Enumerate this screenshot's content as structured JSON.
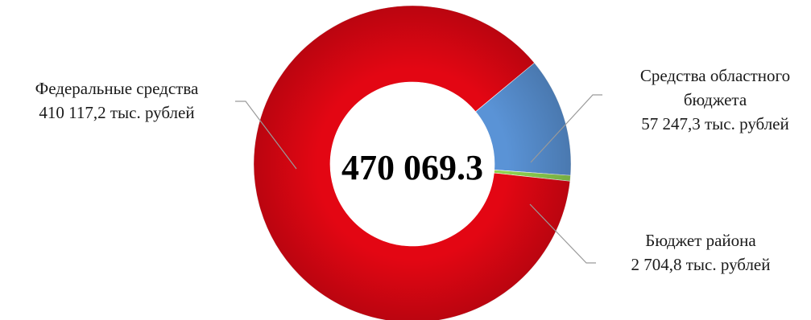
{
  "chart_data": {
    "type": "pie",
    "variant": "donut",
    "center_label": "470 069.3",
    "slices": [
      {
        "name": "Федеральные средства",
        "value": 410117.2,
        "value_label": "410 117,2 тыс. рублей",
        "color": "#e30613",
        "label_lines": [
          "Федеральные средства",
          "410 117,2 тыс. рублей"
        ]
      },
      {
        "name": "Средства областного бюджета",
        "value": 57247.3,
        "value_label": "57 247,3 тыс. рублей",
        "color": "#5a93d6",
        "label_lines": [
          "Средства областного",
          "бюджета",
          "57 247,3 тыс. рублей"
        ]
      },
      {
        "name": "Бюджет района",
        "value": 2704.8,
        "value_label": "2 704,8 тыс. рублей",
        "color": "#8fd14f",
        "label_lines": [
          "Бюджет района",
          "2 704,8 тыс. рублей"
        ]
      }
    ],
    "legend": "none"
  }
}
